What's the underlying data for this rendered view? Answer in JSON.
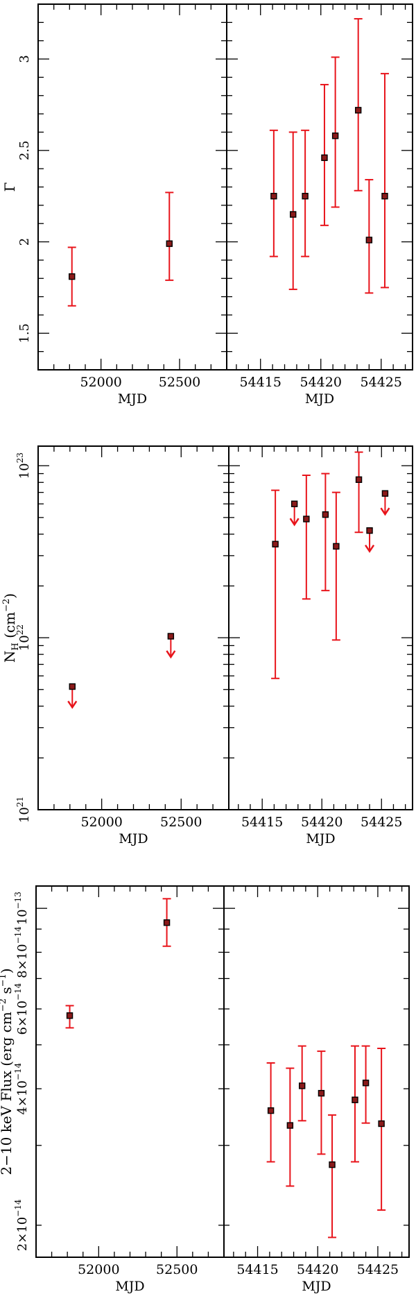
{
  "colors": {
    "error": "#e8141b",
    "marker_fill": "#8b1a1a",
    "axis": "#000000"
  },
  "chart_data": [
    {
      "type": "scatter",
      "panel": "top-left",
      "xlabel": "MJD",
      "ylabel": "Γ",
      "xlim": [
        51600,
        52800
      ],
      "ylim": [
        1.3,
        3.3
      ],
      "xticks": [
        {
          "v": 52000,
          "label": "52000"
        },
        {
          "v": 52500,
          "label": "52500"
        }
      ],
      "yticks": [
        {
          "v": 1.5,
          "label": "1.5"
        },
        {
          "v": 2,
          "label": "2"
        },
        {
          "v": 2.5,
          "label": "2.5"
        },
        {
          "v": 3,
          "label": "3"
        }
      ],
      "points": [
        {
          "x": 51815,
          "y": 1.81,
          "lo": 1.65,
          "hi": 1.97
        },
        {
          "x": 52435,
          "y": 1.99,
          "lo": 1.79,
          "hi": 2.27
        }
      ]
    },
    {
      "type": "scatter",
      "panel": "top-right",
      "xlabel": "MJD",
      "ylabel": "",
      "xlim": [
        54412.2,
        54427.6
      ],
      "ylim": [
        1.3,
        3.3
      ],
      "xticks": [
        {
          "v": 54415,
          "label": "54415"
        },
        {
          "v": 54420,
          "label": "54420"
        },
        {
          "v": 54425,
          "label": "54425"
        }
      ],
      "points": [
        {
          "x": 54416.1,
          "y": 2.25,
          "lo": 1.92,
          "hi": 2.61
        },
        {
          "x": 54417.7,
          "y": 2.15,
          "lo": 1.74,
          "hi": 2.6
        },
        {
          "x": 54418.7,
          "y": 2.25,
          "lo": 1.92,
          "hi": 2.61
        },
        {
          "x": 54420.3,
          "y": 2.46,
          "lo": 2.09,
          "hi": 2.86
        },
        {
          "x": 54421.2,
          "y": 2.58,
          "lo": 2.19,
          "hi": 3.01
        },
        {
          "x": 54423.1,
          "y": 2.72,
          "lo": 2.28,
          "hi": 3.22
        },
        {
          "x": 54424.0,
          "y": 2.01,
          "lo": 1.72,
          "hi": 2.34
        },
        {
          "x": 54425.3,
          "y": 2.25,
          "lo": 1.75,
          "hi": 2.92
        }
      ]
    },
    {
      "type": "scatter",
      "panel": "middle-left",
      "yscale": "log",
      "xlabel": "MJD",
      "ylabel": "N_H (cm^-2)",
      "xlim": [
        51600,
        52800
      ],
      "ylim": [
        1e+21,
        1.3e+23
      ],
      "xticks": [
        {
          "v": 52000,
          "label": "52000"
        },
        {
          "v": 52500,
          "label": "52500"
        }
      ],
      "yticks": [
        {
          "v": 1e+21,
          "label": "10^21"
        },
        {
          "v": 1e+22,
          "label": "10^22"
        },
        {
          "v": 1e+23,
          "label": "10^23"
        }
      ],
      "points": [
        {
          "x": 51815,
          "y": 5.2e+21,
          "upper_limit": true
        },
        {
          "x": 52435,
          "y": 1.02e+22,
          "upper_limit": true
        }
      ]
    },
    {
      "type": "scatter",
      "panel": "middle-right",
      "yscale": "log",
      "xlabel": "MJD",
      "ylabel": "",
      "xlim": [
        54412.2,
        54427.6
      ],
      "ylim": [
        1e+21,
        1.3e+23
      ],
      "xticks": [
        {
          "v": 54415,
          "label": "54415"
        },
        {
          "v": 54420,
          "label": "54420"
        },
        {
          "v": 54425,
          "label": "54425"
        }
      ],
      "points": [
        {
          "x": 54416.1,
          "y": 3.5e+22,
          "lo": 5.8e+21,
          "hi": 7.2e+22
        },
        {
          "x": 54417.7,
          "y": 6e+22,
          "upper_limit": true
        },
        {
          "x": 54418.7,
          "y": 4.9e+22,
          "lo": 1.68e+22,
          "hi": 8.8e+22
        },
        {
          "x": 54420.3,
          "y": 5.2e+22,
          "lo": 1.88e+22,
          "hi": 9e+22
        },
        {
          "x": 54421.2,
          "y": 3.4e+22,
          "lo": 9.7e+21,
          "hi": 7e+22
        },
        {
          "x": 54423.1,
          "y": 8.3e+22,
          "lo": 4.1e+22,
          "hi": 1.2e+23
        },
        {
          "x": 54424.0,
          "y": 4.2e+22,
          "upper_limit": true
        },
        {
          "x": 54425.3,
          "y": 6.9e+22,
          "upper_limit": true
        }
      ]
    },
    {
      "type": "scatter",
      "panel": "bottom-left",
      "yscale": "log",
      "xlabel": "MJD",
      "ylabel": "2−10 keV Flux (erg cm^-2 s^-1)",
      "xlim": [
        51600,
        52800
      ],
      "ylim": [
        1.7e-14,
        1.12e-13
      ],
      "xticks": [
        {
          "v": 52000,
          "label": "52000"
        },
        {
          "v": 52500,
          "label": "52500"
        }
      ],
      "yticks": [
        {
          "v": 2e-14,
          "label": "2×10^-14"
        },
        {
          "v": 4e-14,
          "label": "4×10^-14"
        },
        {
          "v": 6e-14,
          "label": "6×10^-14"
        },
        {
          "v": 8e-14,
          "label": "8×10^-14"
        },
        {
          "v": 1e-13,
          "label": "10^-13"
        }
      ],
      "points": [
        {
          "x": 51815,
          "y": 5.8e-14,
          "lo": 5.45e-14,
          "hi": 6.1e-14
        },
        {
          "x": 52435,
          "y": 9.3e-14,
          "lo": 8.25e-14,
          "hi": 1.05e-13
        }
      ]
    },
    {
      "type": "scatter",
      "panel": "bottom-right",
      "yscale": "log",
      "xlabel": "MJD",
      "ylabel": "",
      "xlim": [
        54412.2,
        54427.6
      ],
      "ylim": [
        1.7e-14,
        1.12e-13
      ],
      "xticks": [
        {
          "v": 54415,
          "label": "54415"
        },
        {
          "v": 54420,
          "label": "54420"
        },
        {
          "v": 54425,
          "label": "54425"
        }
      ],
      "points": [
        {
          "x": 54416.1,
          "y": 3.58e-14,
          "lo": 2.76e-14,
          "hi": 4.56e-14
        },
        {
          "x": 54417.7,
          "y": 3.32e-14,
          "lo": 2.44e-14,
          "hi": 4.44e-14
        },
        {
          "x": 54418.7,
          "y": 4.06e-14,
          "lo": 3.4e-14,
          "hi": 4.97e-14
        },
        {
          "x": 54420.3,
          "y": 3.91e-14,
          "lo": 2.87e-14,
          "hi": 4.84e-14
        },
        {
          "x": 54421.2,
          "y": 2.72e-14,
          "lo": 1.88e-14,
          "hi": 3.5e-14
        },
        {
          "x": 54423.1,
          "y": 3.78e-14,
          "lo": 2.76e-14,
          "hi": 4.97e-14
        },
        {
          "x": 54424.0,
          "y": 4.12e-14,
          "lo": 3.36e-14,
          "hi": 4.97e-14
        },
        {
          "x": 54425.3,
          "y": 3.35e-14,
          "lo": 2.16e-14,
          "hi": 4.91e-14
        }
      ]
    }
  ]
}
